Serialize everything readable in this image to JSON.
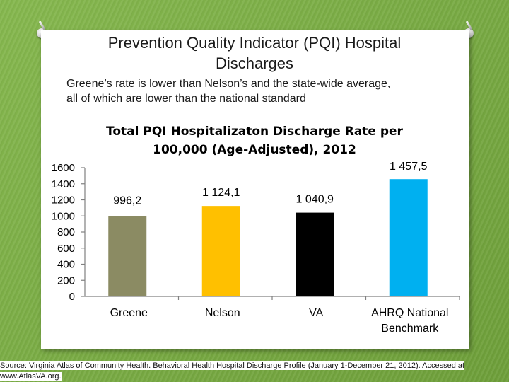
{
  "slide": {
    "title_lines": [
      "Prevention Quality Indicator (PQI) Hospital",
      "Discharges"
    ],
    "subtitle_lines": [
      "Greene’s rate is lower than Nelson’s and the state-wide average,",
      "all of which are lower than the national standard"
    ],
    "source": "Source: Virginia Atlas of Community Health. Behavioral Health Hospital Discharge Profile (January 1-December 21, 2012). Accessed at www.AtlasVA.org."
  },
  "chart_data": {
    "type": "bar",
    "title_lines": [
      "Total PQI Hospitalizaton Discharge Rate per",
      "100,000 (Age-Adjusted), 2012"
    ],
    "categories": [
      [
        "Greene"
      ],
      [
        "Nelson"
      ],
      [
        "VA"
      ],
      [
        "AHRQ National",
        "Benchmark"
      ]
    ],
    "values": [
      996.2,
      1124.1,
      1040.9,
      1457.5
    ],
    "value_labels": [
      "996,2",
      "1 124,1",
      "1 040,9",
      "1 457,5"
    ],
    "colors": [
      "#8b8b63",
      "#ffc000",
      "#000000",
      "#00b0f0"
    ],
    "ylim": [
      0,
      1600
    ],
    "yticks": [
      0,
      200,
      400,
      600,
      800,
      1000,
      1200,
      1400,
      1600
    ],
    "ytick_labels": [
      "0",
      "200",
      "400",
      "600",
      "800",
      "1000",
      "1200",
      "1400",
      "1600"
    ],
    "xlabel": "",
    "ylabel": "",
    "legend": "none",
    "grid": false
  }
}
